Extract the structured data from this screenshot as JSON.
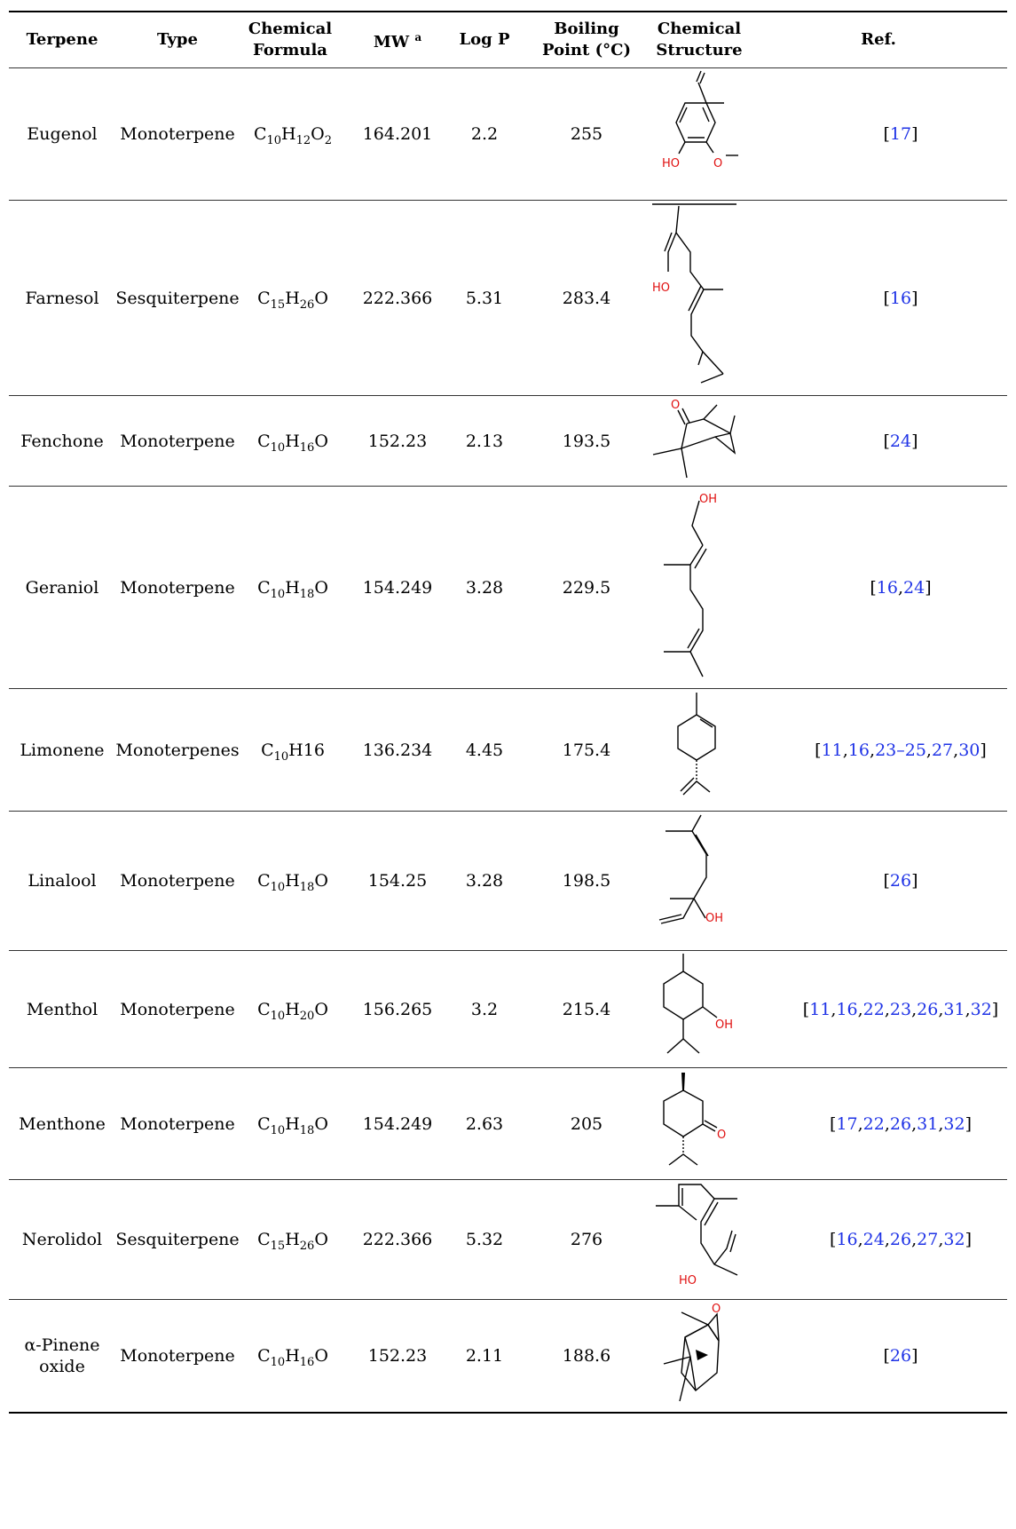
{
  "headers": {
    "terpene": "Terpene",
    "type": "Type",
    "formula_l1": "Chemical",
    "formula_l2": "Formula",
    "mw": "MW",
    "mw_sup": "a",
    "logp": "Log P",
    "bp_l1": "Boiling",
    "bp_l2": "Point (°C)",
    "structure_l1": "Chemical",
    "structure_l2": "Structure",
    "ref": "Ref."
  },
  "rows": [
    {
      "name": "Eugenol",
      "type": "Monoterpene",
      "formula": [
        [
          "C",
          ""
        ],
        [
          "10",
          "sub"
        ],
        [
          "H",
          ""
        ],
        [
          "12",
          "sub"
        ],
        [
          "O",
          ""
        ],
        [
          "2",
          "sub"
        ]
      ],
      "mw": "164.201",
      "logp": "2.2",
      "bp": "255",
      "ref_open": "[",
      "refs": [
        "17"
      ],
      "ref_close": "]"
    },
    {
      "name": "Farnesol",
      "type": "Sesquiterpene",
      "formula": [
        [
          "C",
          ""
        ],
        [
          "15",
          "sub"
        ],
        [
          "H",
          ""
        ],
        [
          "26",
          "sub"
        ],
        [
          "O",
          ""
        ]
      ],
      "mw": "222.366",
      "logp": "5.31",
      "bp": "283.4",
      "ref_open": "[",
      "refs": [
        "16"
      ],
      "ref_close": "]"
    },
    {
      "name": "Fenchone",
      "type": "Monoterpene",
      "formula": [
        [
          "C",
          ""
        ],
        [
          "10",
          "sub"
        ],
        [
          "H",
          ""
        ],
        [
          "16",
          "sub"
        ],
        [
          "O",
          ""
        ]
      ],
      "mw": "152.23",
      "logp": "2.13",
      "bp": "193.5",
      "ref_open": "[",
      "refs": [
        "24"
      ],
      "ref_close": "]"
    },
    {
      "name": "Geraniol",
      "type": "Monoterpene",
      "formula": [
        [
          "C",
          ""
        ],
        [
          "10",
          "sub"
        ],
        [
          "H",
          ""
        ],
        [
          "18",
          "sub"
        ],
        [
          "O",
          ""
        ]
      ],
      "mw": "154.249",
      "logp": "3.28",
      "bp": "229.5",
      "ref_open": "[",
      "refs": [
        "16",
        "24"
      ],
      "ref_close": "]"
    },
    {
      "name": "Limonene",
      "type": "Monoterpenes",
      "formula": [
        [
          "C",
          ""
        ],
        [
          "10",
          "sub"
        ],
        [
          "H16",
          ""
        ]
      ],
      "mw": "136.234",
      "logp": "4.45",
      "bp": "175.4",
      "ref_open": "[",
      "refs": [
        "11",
        "16",
        "23–25",
        "27",
        "30"
      ],
      "ref_close": "]"
    },
    {
      "name": "Linalool",
      "type": "Monoterpene",
      "formula": [
        [
          "C",
          ""
        ],
        [
          "10",
          "sub"
        ],
        [
          "H",
          ""
        ],
        [
          "18",
          "sub"
        ],
        [
          "O",
          ""
        ]
      ],
      "mw": "154.25",
      "logp": "3.28",
      "bp": "198.5",
      "ref_open": "[",
      "refs": [
        "26"
      ],
      "ref_close": "]"
    },
    {
      "name": "Menthol",
      "type": "Monoterpene",
      "formula": [
        [
          "C",
          ""
        ],
        [
          "10",
          "sub"
        ],
        [
          "H",
          ""
        ],
        [
          "20",
          "sub"
        ],
        [
          "O",
          ""
        ]
      ],
      "mw": "156.265",
      "logp": "3.2",
      "bp": "215.4",
      "ref_open": "[",
      "refs": [
        "11",
        "16",
        "22",
        "23",
        "26",
        "31",
        "32"
      ],
      "ref_close": "]"
    },
    {
      "name": "Menthone",
      "type": "Monoterpene",
      "formula": [
        [
          "C",
          ""
        ],
        [
          "10",
          "sub"
        ],
        [
          "H",
          ""
        ],
        [
          "18",
          "sub"
        ],
        [
          "O",
          ""
        ]
      ],
      "mw": "154.249",
      "logp": "2.63",
      "bp": "205",
      "ref_open": "[",
      "refs": [
        "17",
        "22",
        "26",
        "31",
        "32"
      ],
      "ref_close": "]"
    },
    {
      "name": "Nerolidol",
      "type": "Sesquiterpene",
      "formula": [
        [
          "C",
          ""
        ],
        [
          "15",
          "sub"
        ],
        [
          "H",
          ""
        ],
        [
          "26",
          "sub"
        ],
        [
          "O",
          ""
        ]
      ],
      "mw": "222.366",
      "logp": "5.32",
      "bp": "276",
      "ref_open": "[",
      "refs": [
        "16",
        "24",
        "26",
        "27",
        "32"
      ],
      "ref_close": "]"
    },
    {
      "name_l1": "α-Pinene",
      "name_l2": "oxide",
      "type": "Monoterpene",
      "formula": [
        [
          "C",
          ""
        ],
        [
          "10",
          "sub"
        ],
        [
          "H",
          ""
        ],
        [
          "16",
          "sub"
        ],
        [
          "O",
          ""
        ]
      ],
      "mw": "152.23",
      "logp": "2.11",
      "bp": "188.6",
      "ref_open": "[",
      "refs": [
        "26"
      ],
      "ref_close": "]"
    }
  ],
  "structure_labels": {
    "ho": "HO",
    "o": "O",
    "oh": "OH"
  },
  "colors": {
    "link": "#1f33e6",
    "heteroatom": "#e01010"
  }
}
